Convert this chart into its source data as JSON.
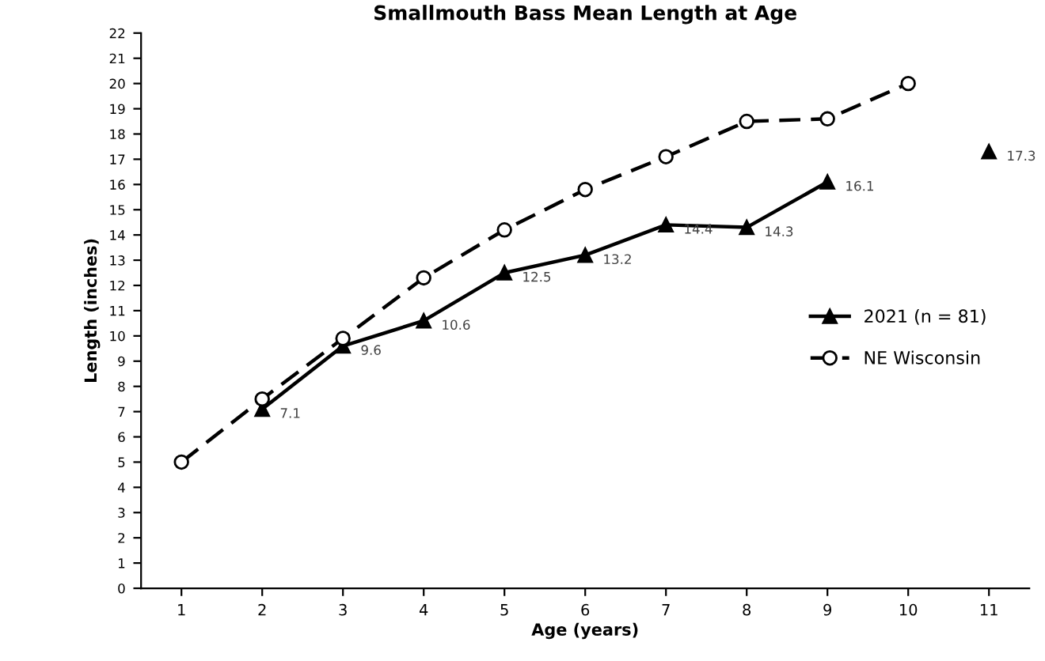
{
  "chart_data": {
    "type": "line",
    "title": "Smallmouth Bass Mean Length at Age",
    "xlabel": "Age (years)",
    "ylabel": "Length (inches)",
    "categories": [
      "1",
      "2",
      "3",
      "4",
      "5",
      "6",
      "7",
      "8",
      "9",
      "10",
      "11"
    ],
    "ylim": [
      0,
      22
    ],
    "yticks": [
      0,
      1,
      2,
      3,
      4,
      5,
      6,
      7,
      8,
      9,
      10,
      11,
      12,
      13,
      14,
      15,
      16,
      17,
      18,
      19,
      20,
      21,
      22
    ],
    "grid": false,
    "legend": "right",
    "series": [
      {
        "name": "2021 (n = 81)",
        "color": "#000000",
        "marker": "triangle",
        "line_style": "solid",
        "values": [
          null,
          7.1,
          9.6,
          10.6,
          12.5,
          13.2,
          14.4,
          14.3,
          16.1,
          null,
          17.3
        ],
        "value_labels": [
          null,
          "7.1",
          "9.6",
          "10.6",
          "12.5",
          "13.2",
          "14.4",
          "14.3",
          "16.1",
          null,
          "17.3"
        ]
      },
      {
        "name": "NE Wisconsin",
        "color": "#000000",
        "marker": "circle",
        "line_style": "dashed",
        "values": [
          5.0,
          7.5,
          9.9,
          12.3,
          14.2,
          15.8,
          17.1,
          18.5,
          18.6,
          20.0,
          null
        ]
      }
    ]
  }
}
